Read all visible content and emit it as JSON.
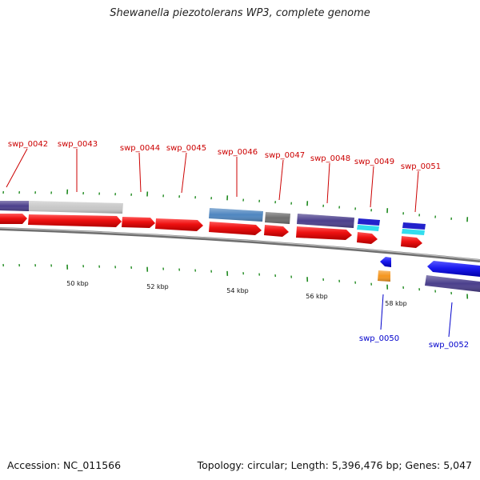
{
  "title": "Shewanella piezotolerans WP3, complete genome",
  "footer": {
    "accession": "Accession: NC_011566",
    "summary": "Topology: circular; Length: 5,396,476 bp; Genes: 5,047"
  },
  "colors": {
    "cds_forward": "#ee1111",
    "cds_reverse": "#1a1af0",
    "label_top": "#cc0000",
    "label_bottom": "#0000cc",
    "backbone": "#8a8a8a",
    "tick": "#1f8a1f"
  },
  "scale_labels": [
    "50 kbp",
    "52 kbp",
    "54 kbp",
    "56 kbp",
    "58 kbp"
  ],
  "top_genes": [
    {
      "id": "swp_0042"
    },
    {
      "id": "swp_0043"
    },
    {
      "id": "swp_0044"
    },
    {
      "id": "swp_0045"
    },
    {
      "id": "swp_0046"
    },
    {
      "id": "swp_0047"
    },
    {
      "id": "swp_0048"
    },
    {
      "id": "swp_0049"
    },
    {
      "id": "swp_0051"
    }
  ],
  "bottom_genes": [
    {
      "id": "swp_0050"
    },
    {
      "id": "swp_0052"
    }
  ],
  "function_bars": [
    {
      "name": "bar-0042",
      "color": "#4b3f8c"
    },
    {
      "name": "bar-0043",
      "color": "#c8c8c8"
    },
    {
      "name": "bar-0046",
      "color": "#4f86c0"
    },
    {
      "name": "bar-0047",
      "color": "#6e6e6e"
    },
    {
      "name": "bar-0048",
      "color": "#4b3f8c"
    },
    {
      "name": "bar-0049a",
      "color": "#2222cc"
    },
    {
      "name": "bar-0049b",
      "color": "#33ddee"
    },
    {
      "name": "bar-0051a",
      "color": "#2222cc"
    },
    {
      "name": "bar-0051b",
      "color": "#33ddee"
    },
    {
      "name": "bar-0050",
      "color": "#f5961e"
    },
    {
      "name": "bar-0052",
      "color": "#4b3f8c"
    }
  ]
}
